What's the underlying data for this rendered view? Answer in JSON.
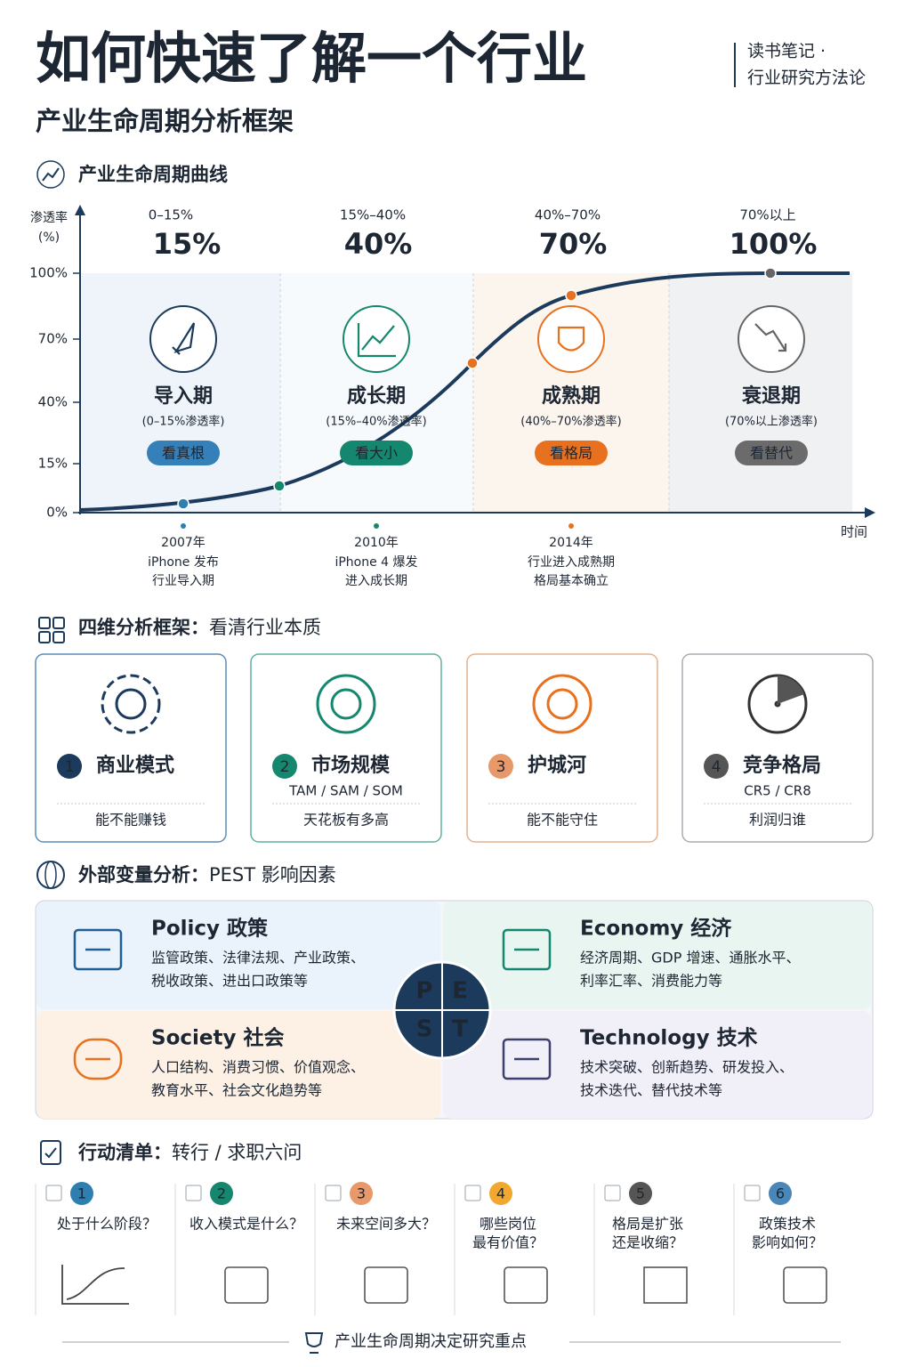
{
  "header": {
    "title": "如何快速了解一个行业",
    "subtitle": "产业生命周期分析框架",
    "tag": [
      "读书笔记 ·",
      "行业研究方法论"
    ]
  },
  "lifecycle": {
    "heading": "产业生命周期曲线",
    "y_label": [
      "渗透率",
      "(%)"
    ],
    "yticks": [
      "0%",
      "15%",
      "40%",
      "70%",
      "100%"
    ],
    "x_label": "时间",
    "stages": [
      {
        "range": "0–15%",
        "value": "15%",
        "name": "导入期",
        "desc": "(0–15%渗透率)",
        "tag": "看真根"
      },
      {
        "range": "15%–40%",
        "value": "40%",
        "name": "成长期",
        "desc": "(15%–40%渗透率)",
        "tag": "看大小"
      },
      {
        "range": "40%–70%",
        "value": "70%",
        "name": "成熟期",
        "desc": "(40%–70%渗透率)",
        "tag": "看格局"
      },
      {
        "range": "70%以上",
        "value": "100%",
        "name": "衰退期",
        "desc": "(70%以上渗透率)",
        "tag": "看替代"
      }
    ],
    "events": [
      {
        "year": "2007年",
        "lines": [
          "iPhone 发布",
          "行业导入期"
        ]
      },
      {
        "year": "2010年",
        "lines": [
          "iPhone 4 爆发",
          "进入成长期"
        ]
      },
      {
        "year": "2014年",
        "lines": [
          "行业进入成熟期",
          "格局基本确立"
        ]
      }
    ]
  },
  "framework": {
    "heading": "四维分析框架：",
    "subheading": "看清行业本质",
    "cards": [
      {
        "num": "1",
        "title": "商业模式",
        "bottom": "能不能赚钱"
      },
      {
        "num": "2",
        "title": "市场规模",
        "sub": "TAM / SAM / SOM",
        "bottom": "天花板有多高"
      },
      {
        "num": "3",
        "title": "护城河",
        "bottom": "能不能守住"
      },
      {
        "num": "4",
        "title": "竞争格局",
        "sub": "CR5 / CR8",
        "bottom": "利润归谁"
      }
    ]
  },
  "pest": {
    "heading": "外部变量分析：",
    "subheading": "PEST 影响因素",
    "letters": [
      "P",
      "E",
      "S",
      "T"
    ],
    "quadrants": [
      {
        "title": "Policy 政策",
        "lines": [
          "监管政策、法律法规、产业政策、",
          "税收政策、进出口政策等"
        ]
      },
      {
        "title": "Economy 经济",
        "lines": [
          "经济周期、GDP 增速、通胀水平、",
          "利率汇率、消费能力等"
        ]
      },
      {
        "title": "Society 社会",
        "lines": [
          "人口结构、消费习惯、价值观念、",
          "教育水平、社会文化趋势等"
        ]
      },
      {
        "title": "Technology 技术",
        "lines": [
          "技术突破、创新趋势、研发投入、",
          "技术迭代、替代技术等"
        ]
      }
    ]
  },
  "actions": {
    "heading": "行动清单：",
    "subheading": "转行 / 求职六问",
    "items": [
      {
        "num": "1",
        "lines": [
          "处于什么阶段？"
        ]
      },
      {
        "num": "2",
        "lines": [
          "收入模式是什么？"
        ]
      },
      {
        "num": "3",
        "lines": [
          "未来空间多大？"
        ]
      },
      {
        "num": "4",
        "lines": [
          "哪些岗位",
          "最有价值？"
        ]
      },
      {
        "num": "5",
        "lines": [
          "格局是扩张",
          "还是收缩？"
        ]
      },
      {
        "num": "6",
        "lines": [
          "政策技术",
          "影响如何？"
        ]
      }
    ]
  },
  "footer": "产业生命周期决定研究重点"
}
